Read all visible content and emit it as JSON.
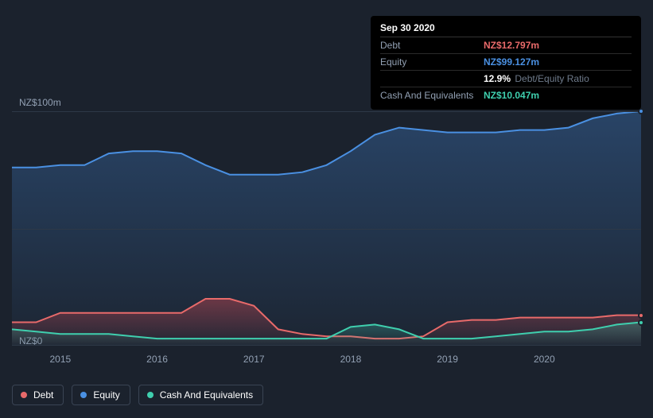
{
  "tooltip": {
    "date": "Sep 30 2020",
    "rows": [
      {
        "label": "Debt",
        "value": "NZ$12.797m",
        "color": "#e86a6a"
      },
      {
        "label": "Equity",
        "value": "NZ$99.127m",
        "color": "#4a90e2"
      },
      {
        "label": "",
        "value": "12.9%",
        "suffix": "Debt/Equity Ratio",
        "color": "#ffffff"
      },
      {
        "label": "Cash And Equivalents",
        "value": "NZ$10.047m",
        "color": "#3fcfae"
      }
    ]
  },
  "yaxis": {
    "max_label": "NZ$100m",
    "min_label": "NZ$0",
    "max": 100,
    "min": 0
  },
  "xaxis": {
    "years": [
      2015,
      2016,
      2017,
      2018,
      2019,
      2020
    ],
    "range": [
      2014.5,
      2021.0
    ]
  },
  "colors": {
    "debt": "#e86a6a",
    "equity": "#4a90e2",
    "cash": "#3fcfae",
    "grid": "#2e3947",
    "bg": "#1b222d",
    "equity_fill_top": "rgba(52,96,150,0.55)",
    "equity_fill_bot": "rgba(52,96,150,0.05)",
    "debt_fill_top": "rgba(200,70,80,0.45)",
    "debt_fill_bot": "rgba(200,70,80,0.02)",
    "cash_fill_top": "rgba(63,180,160,0.35)",
    "cash_fill_bot": "rgba(63,180,160,0.02)"
  },
  "series": {
    "equity": [
      [
        2014.5,
        76
      ],
      [
        2014.75,
        76
      ],
      [
        2015.0,
        77
      ],
      [
        2015.25,
        77
      ],
      [
        2015.5,
        82
      ],
      [
        2015.75,
        83
      ],
      [
        2016.0,
        83
      ],
      [
        2016.25,
        82
      ],
      [
        2016.5,
        77
      ],
      [
        2016.75,
        73
      ],
      [
        2017.0,
        73
      ],
      [
        2017.25,
        73
      ],
      [
        2017.5,
        74
      ],
      [
        2017.75,
        77
      ],
      [
        2018.0,
        83
      ],
      [
        2018.25,
        90
      ],
      [
        2018.5,
        93
      ],
      [
        2018.75,
        92
      ],
      [
        2019.0,
        91
      ],
      [
        2019.25,
        91
      ],
      [
        2019.5,
        91
      ],
      [
        2019.75,
        92
      ],
      [
        2020.0,
        92
      ],
      [
        2020.25,
        93
      ],
      [
        2020.5,
        97
      ],
      [
        2020.75,
        99
      ],
      [
        2021.0,
        100
      ]
    ],
    "debt": [
      [
        2014.5,
        10
      ],
      [
        2014.75,
        10
      ],
      [
        2015.0,
        14
      ],
      [
        2015.25,
        14
      ],
      [
        2015.5,
        14
      ],
      [
        2015.75,
        14
      ],
      [
        2016.0,
        14
      ],
      [
        2016.25,
        14
      ],
      [
        2016.5,
        20
      ],
      [
        2016.75,
        20
      ],
      [
        2017.0,
        17
      ],
      [
        2017.25,
        7
      ],
      [
        2017.5,
        5
      ],
      [
        2017.75,
        4
      ],
      [
        2018.0,
        4
      ],
      [
        2018.25,
        3
      ],
      [
        2018.5,
        3
      ],
      [
        2018.75,
        4
      ],
      [
        2019.0,
        10
      ],
      [
        2019.25,
        11
      ],
      [
        2019.5,
        11
      ],
      [
        2019.75,
        12
      ],
      [
        2020.0,
        12
      ],
      [
        2020.25,
        12
      ],
      [
        2020.5,
        12
      ],
      [
        2020.75,
        13
      ],
      [
        2021.0,
        13
      ]
    ],
    "cash": [
      [
        2014.5,
        7
      ],
      [
        2014.75,
        6
      ],
      [
        2015.0,
        5
      ],
      [
        2015.25,
        5
      ],
      [
        2015.5,
        5
      ],
      [
        2015.75,
        4
      ],
      [
        2016.0,
        3
      ],
      [
        2016.25,
        3
      ],
      [
        2016.5,
        3
      ],
      [
        2016.75,
        3
      ],
      [
        2017.0,
        3
      ],
      [
        2017.25,
        3
      ],
      [
        2017.5,
        3
      ],
      [
        2017.75,
        3
      ],
      [
        2018.0,
        8
      ],
      [
        2018.25,
        9
      ],
      [
        2018.5,
        7
      ],
      [
        2018.75,
        3
      ],
      [
        2019.0,
        3
      ],
      [
        2019.25,
        3
      ],
      [
        2019.5,
        4
      ],
      [
        2019.75,
        5
      ],
      [
        2020.0,
        6
      ],
      [
        2020.25,
        6
      ],
      [
        2020.5,
        7
      ],
      [
        2020.75,
        9
      ],
      [
        2021.0,
        10
      ]
    ]
  },
  "legend": [
    {
      "label": "Debt",
      "color": "#e86a6a"
    },
    {
      "label": "Equity",
      "color": "#4a90e2"
    },
    {
      "label": "Cash And Equivalents",
      "color": "#3fcfae"
    }
  ]
}
